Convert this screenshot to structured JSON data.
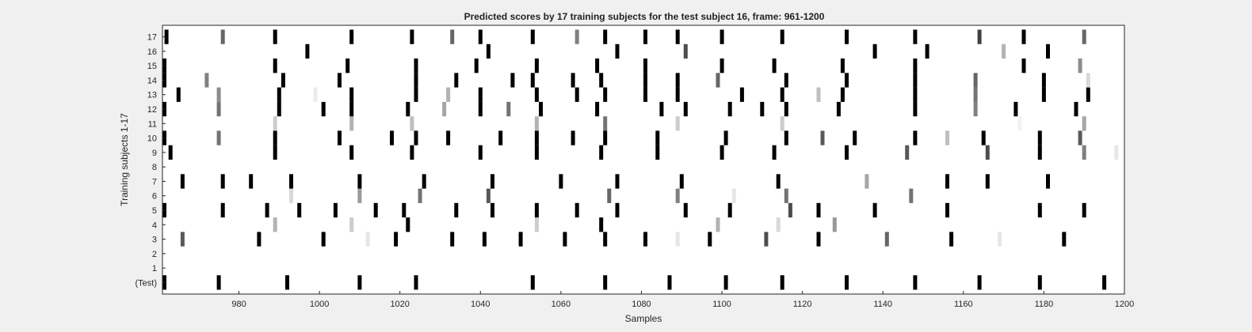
{
  "chart_data": {
    "type": "heatmap",
    "title": "Predicted scores by 17 training subjects for the test subject 16, frame: 961-1200",
    "xlabel": "Samples",
    "ylabel": "Training subjects 1-17",
    "xlim": [
      961,
      1200
    ],
    "xticks": [
      980,
      1000,
      1020,
      1040,
      1060,
      1080,
      1100,
      1120,
      1140,
      1160,
      1180,
      1200
    ],
    "rows": [
      "(Test)",
      "1",
      "2",
      "3",
      "4",
      "5",
      "6",
      "7",
      "8",
      "9",
      "10",
      "11",
      "12",
      "13",
      "14",
      "15",
      "16",
      "17"
    ],
    "colormap": "white (0) to black (1)",
    "grid": false,
    "marks": [
      {
        "row": "(Test)",
        "items": [
          [
            961,
            1
          ],
          [
            975,
            1
          ],
          [
            992,
            1
          ],
          [
            1010,
            1
          ],
          [
            1024,
            1
          ],
          [
            1053,
            1
          ],
          [
            1071,
            1
          ],
          [
            1087,
            1
          ],
          [
            1101,
            1
          ],
          [
            1115,
            1
          ],
          [
            1131,
            1
          ],
          [
            1148,
            1
          ],
          [
            1164,
            1
          ],
          [
            1179,
            1
          ],
          [
            1195,
            1
          ]
        ]
      },
      {
        "row": "1",
        "items": []
      },
      {
        "row": "2",
        "items": []
      },
      {
        "row": "3",
        "items": [
          [
            966,
            0.65
          ],
          [
            985,
            1
          ],
          [
            1001,
            1
          ],
          [
            1012,
            0.1
          ],
          [
            1019,
            1
          ],
          [
            1033,
            1
          ],
          [
            1041,
            1
          ],
          [
            1050,
            1
          ],
          [
            1061,
            1
          ],
          [
            1071,
            1
          ],
          [
            1081,
            1
          ],
          [
            1089,
            0.1
          ],
          [
            1097,
            1
          ],
          [
            1111,
            0.7
          ],
          [
            1124,
            1
          ],
          [
            1141,
            0.6
          ],
          [
            1157,
            1
          ],
          [
            1169,
            0.1
          ],
          [
            1185,
            1
          ]
        ]
      },
      {
        "row": "4",
        "items": [
          [
            989,
            0.3
          ],
          [
            1008,
            0.2
          ],
          [
            1022,
            1
          ],
          [
            1054,
            0.2
          ],
          [
            1070,
            1
          ],
          [
            1099,
            0.3
          ],
          [
            1114,
            0.15
          ],
          [
            1128,
            0.4
          ]
        ]
      },
      {
        "row": "5",
        "items": [
          [
            961,
            1
          ],
          [
            976,
            1
          ],
          [
            987,
            1
          ],
          [
            995,
            1
          ],
          [
            1004,
            1
          ],
          [
            1014,
            1
          ],
          [
            1021,
            1
          ],
          [
            1034,
            1
          ],
          [
            1043,
            1
          ],
          [
            1054,
            1
          ],
          [
            1064,
            1
          ],
          [
            1074,
            1
          ],
          [
            1091,
            1
          ],
          [
            1102,
            1
          ],
          [
            1117,
            0.7
          ],
          [
            1124,
            1
          ],
          [
            1138,
            1
          ],
          [
            1156,
            1
          ],
          [
            1179,
            1
          ],
          [
            1190,
            1
          ]
        ]
      },
      {
        "row": "6",
        "items": [
          [
            993,
            0.15
          ],
          [
            1010,
            0.4
          ],
          [
            1025,
            0.55
          ],
          [
            1042,
            0.65
          ],
          [
            1072,
            0.6
          ],
          [
            1089,
            0.5
          ],
          [
            1103,
            0.1
          ],
          [
            1116,
            0.55
          ],
          [
            1147,
            0.55
          ]
        ]
      },
      {
        "row": "7",
        "items": [
          [
            966,
            1
          ],
          [
            976,
            1
          ],
          [
            983,
            1
          ],
          [
            993,
            1
          ],
          [
            1010,
            1
          ],
          [
            1026,
            1
          ],
          [
            1043,
            1
          ],
          [
            1060,
            1
          ],
          [
            1074,
            1
          ],
          [
            1090,
            1
          ],
          [
            1114,
            1
          ],
          [
            1136,
            0.35
          ],
          [
            1156,
            1
          ],
          [
            1166,
            1
          ],
          [
            1181,
            1
          ]
        ]
      },
      {
        "row": "8",
        "items": []
      },
      {
        "row": "9",
        "items": [
          [
            963,
            1
          ],
          [
            989,
            1
          ],
          [
            1008,
            1
          ],
          [
            1023,
            1
          ],
          [
            1040,
            1
          ],
          [
            1054,
            1
          ],
          [
            1070,
            1
          ],
          [
            1084,
            1
          ],
          [
            1100,
            1
          ],
          [
            1113,
            1
          ],
          [
            1131,
            1
          ],
          [
            1146,
            0.65
          ],
          [
            1166,
            0.7
          ],
          [
            1179,
            1
          ],
          [
            1190,
            0.5
          ],
          [
            1198,
            0.1
          ]
        ]
      },
      {
        "row": "10",
        "items": [
          [
            961,
            1
          ],
          [
            975,
            0.55
          ],
          [
            989,
            1
          ],
          [
            1005,
            1
          ],
          [
            1018,
            1
          ],
          [
            1024,
            1
          ],
          [
            1032,
            1
          ],
          [
            1045,
            1
          ],
          [
            1054,
            1
          ],
          [
            1063,
            1
          ],
          [
            1071,
            1
          ],
          [
            1084,
            1
          ],
          [
            1101,
            1
          ],
          [
            1116,
            1
          ],
          [
            1125,
            0.65
          ],
          [
            1133,
            1
          ],
          [
            1148,
            1
          ],
          [
            1156,
            0.25
          ],
          [
            1165,
            1
          ],
          [
            1179,
            1
          ],
          [
            1189,
            0.65
          ]
        ]
      },
      {
        "row": "11",
        "items": [
          [
            989,
            0.2
          ],
          [
            1008,
            0.3
          ],
          [
            1023,
            0.25
          ],
          [
            1054,
            0.3
          ],
          [
            1071,
            0.55
          ],
          [
            1089,
            0.2
          ],
          [
            1115,
            0.2
          ],
          [
            1174,
            0.05
          ],
          [
            1190,
            0.35
          ]
        ]
      },
      {
        "row": "12",
        "items": [
          [
            961,
            1
          ],
          [
            975,
            0.55
          ],
          [
            990,
            1
          ],
          [
            1001,
            1
          ],
          [
            1008,
            1
          ],
          [
            1022,
            1
          ],
          [
            1031,
            0.35
          ],
          [
            1040,
            1
          ],
          [
            1047,
            0.55
          ],
          [
            1055,
            1
          ],
          [
            1069,
            1
          ],
          [
            1085,
            1
          ],
          [
            1091,
            1
          ],
          [
            1102,
            1
          ],
          [
            1110,
            1
          ],
          [
            1116,
            1
          ],
          [
            1129,
            1
          ],
          [
            1148,
            1
          ],
          [
            1163,
            0.5
          ],
          [
            1173,
            1
          ],
          [
            1188,
            1
          ]
        ]
      },
      {
        "row": "13",
        "items": [
          [
            965,
            1
          ],
          [
            975,
            0.45
          ],
          [
            990,
            1
          ],
          [
            999,
            0.08
          ],
          [
            1008,
            1
          ],
          [
            1024,
            1
          ],
          [
            1032,
            0.3
          ],
          [
            1040,
            1
          ],
          [
            1054,
            1
          ],
          [
            1064,
            1
          ],
          [
            1071,
            1
          ],
          [
            1081,
            1
          ],
          [
            1089,
            1
          ],
          [
            1105,
            1
          ],
          [
            1115,
            1
          ],
          [
            1124,
            0.25
          ],
          [
            1130,
            1
          ],
          [
            1148,
            1
          ],
          [
            1163,
            0.55
          ],
          [
            1180,
            1
          ],
          [
            1191,
            1
          ]
        ]
      },
      {
        "row": "14",
        "items": [
          [
            961,
            1
          ],
          [
            972,
            0.5
          ],
          [
            991,
            1
          ],
          [
            1005,
            1
          ],
          [
            1024,
            1
          ],
          [
            1034,
            1
          ],
          [
            1048,
            1
          ],
          [
            1053,
            1
          ],
          [
            1063,
            1
          ],
          [
            1070,
            1
          ],
          [
            1081,
            1
          ],
          [
            1089,
            1
          ],
          [
            1099,
            0.6
          ],
          [
            1116,
            1
          ],
          [
            1131,
            1
          ],
          [
            1148,
            1
          ],
          [
            1163,
            0.6
          ],
          [
            1180,
            1
          ],
          [
            1191,
            0.15
          ]
        ]
      },
      {
        "row": "15",
        "items": [
          [
            961,
            1
          ],
          [
            989,
            1
          ],
          [
            1007,
            1
          ],
          [
            1024,
            1
          ],
          [
            1039,
            1
          ],
          [
            1054,
            1
          ],
          [
            1069,
            1
          ],
          [
            1081,
            1
          ],
          [
            1100,
            1
          ],
          [
            1113,
            1
          ],
          [
            1130,
            1
          ],
          [
            1148,
            1
          ],
          [
            1175,
            1
          ],
          [
            1189,
            0.45
          ]
        ]
      },
      {
        "row": "16",
        "items": [
          [
            997,
            1
          ],
          [
            1042,
            1
          ],
          [
            1074,
            1
          ],
          [
            1091,
            0.7
          ],
          [
            1138,
            1
          ],
          [
            1151,
            1
          ],
          [
            1170,
            0.3
          ],
          [
            1181,
            1
          ]
        ]
      },
      {
        "row": "17",
        "items": [
          [
            962,
            1
          ],
          [
            976,
            0.6
          ],
          [
            989,
            1
          ],
          [
            1008,
            1
          ],
          [
            1023,
            1
          ],
          [
            1033,
            0.6
          ],
          [
            1040,
            1
          ],
          [
            1053,
            1
          ],
          [
            1064,
            0.5
          ],
          [
            1071,
            1
          ],
          [
            1081,
            1
          ],
          [
            1089,
            1
          ],
          [
            1100,
            1
          ],
          [
            1115,
            1
          ],
          [
            1131,
            1
          ],
          [
            1148,
            1
          ],
          [
            1164,
            0.75
          ],
          [
            1175,
            1
          ],
          [
            1190,
            0.6
          ]
        ]
      }
    ]
  }
}
